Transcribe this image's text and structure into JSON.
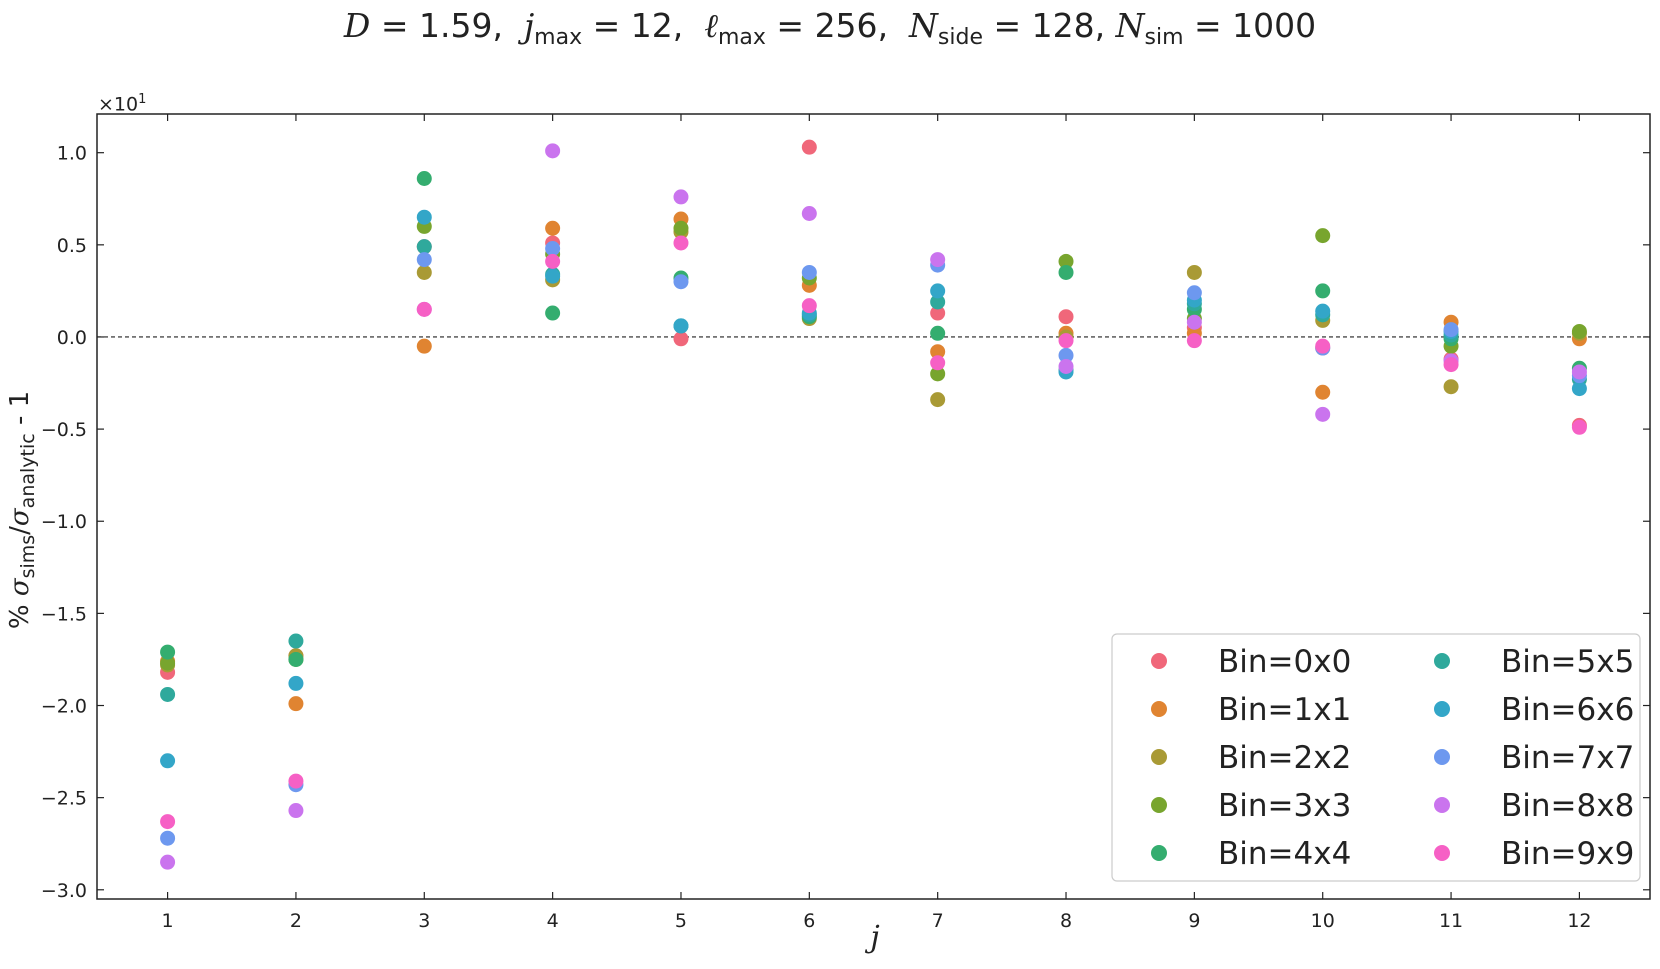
{
  "chart_data": {
    "type": "scatter",
    "title": "D = 1.59, j_max = 12, ℓ_max = 256, N_side = 128, N_sim = 1000",
    "title_parts": {
      "D": "1.59",
      "jmax": "12",
      "lmax": "256",
      "Nside": "128",
      "Nsim": "1000"
    },
    "xlabel": "j",
    "ylabel": "% σ_sims/σ_analytic - 1",
    "y_offset_text": "×10^1",
    "x": [
      1,
      2,
      3,
      4,
      5,
      6,
      7,
      8,
      9,
      10,
      11,
      12
    ],
    "xlim": [
      0.45,
      12.55
    ],
    "ylim": [
      -3.05,
      1.21
    ],
    "x_ticks": [
      1,
      2,
      3,
      4,
      5,
      6,
      7,
      8,
      9,
      10,
      11,
      12
    ],
    "y_ticks": [
      1.0,
      0.5,
      0.0,
      -0.5,
      -1.0,
      -1.5,
      -2.0,
      -2.5,
      -3.0
    ],
    "y_tick_labels": [
      "1.0",
      "0.5",
      "0.0",
      "−0.5",
      "−1.0",
      "−1.5",
      "−2.0",
      "−2.5",
      "−3.0"
    ],
    "reference_line": 0.0,
    "grid": false,
    "legend_position": "bottom-right",
    "series": [
      {
        "name": "Bin=0x0",
        "color": "#f0677a",
        "values": [
          -1.82,
          -1.73,
          0.49,
          0.51,
          -0.01,
          1.03,
          0.13,
          0.11,
          0.05,
          -0.06,
          -0.12,
          -0.48
        ]
      },
      {
        "name": "Bin=1x1",
        "color": "#e08431",
        "values": [
          -1.76,
          -1.99,
          -0.05,
          0.59,
          0.64,
          0.28,
          -0.08,
          0.02,
          0.02,
          -0.3,
          0.08,
          -0.01
        ]
      },
      {
        "name": "Bin=2x2",
        "color": "#a99a35",
        "values": [
          -1.78,
          -1.73,
          0.35,
          0.31,
          0.57,
          0.1,
          -0.34,
          0.0,
          0.35,
          0.09,
          -0.27,
          0.02
        ]
      },
      {
        "name": "Bin=3x3",
        "color": "#78a52e",
        "values": [
          -1.77,
          -1.75,
          0.6,
          0.45,
          0.59,
          0.32,
          -0.2,
          0.41,
          0.1,
          0.55,
          -0.05,
          0.03
        ]
      },
      {
        "name": "Bin=4x4",
        "color": "#34ad6f",
        "values": [
          -1.71,
          -1.75,
          0.86,
          0.13,
          0.32,
          0.11,
          0.02,
          0.35,
          0.15,
          0.25,
          -0.01,
          -0.17
        ]
      },
      {
        "name": "Bin=5x5",
        "color": "#2fa99c",
        "values": [
          -1.94,
          -1.65,
          0.49,
          0.34,
          0.06,
          0.12,
          0.19,
          -0.18,
          0.18,
          0.12,
          0.01,
          -0.23
        ]
      },
      {
        "name": "Bin=6x6",
        "color": "#33a6c8",
        "values": [
          -2.3,
          -1.88,
          0.65,
          0.33,
          0.06,
          0.13,
          0.25,
          -0.19,
          0.2,
          0.14,
          0.03,
          -0.28
        ]
      },
      {
        "name": "Bin=7x7",
        "color": "#6d98ef",
        "values": [
          -2.72,
          -2.43,
          0.42,
          0.48,
          0.3,
          0.35,
          0.39,
          -0.1,
          0.24,
          -0.06,
          0.04,
          -0.21
        ]
      },
      {
        "name": "Bin=8x8",
        "color": "#ca74ee",
        "values": [
          -2.85,
          -2.57,
          0.15,
          1.01,
          0.76,
          0.67,
          0.42,
          -0.16,
          0.08,
          -0.42,
          -0.13,
          -0.19
        ]
      },
      {
        "name": "Bin=9x9",
        "color": "#f660c5",
        "values": [
          -2.63,
          -2.41,
          0.15,
          0.41,
          0.51,
          0.17,
          -0.14,
          -0.02,
          -0.02,
          -0.05,
          -0.15,
          -0.49
        ]
      }
    ]
  }
}
